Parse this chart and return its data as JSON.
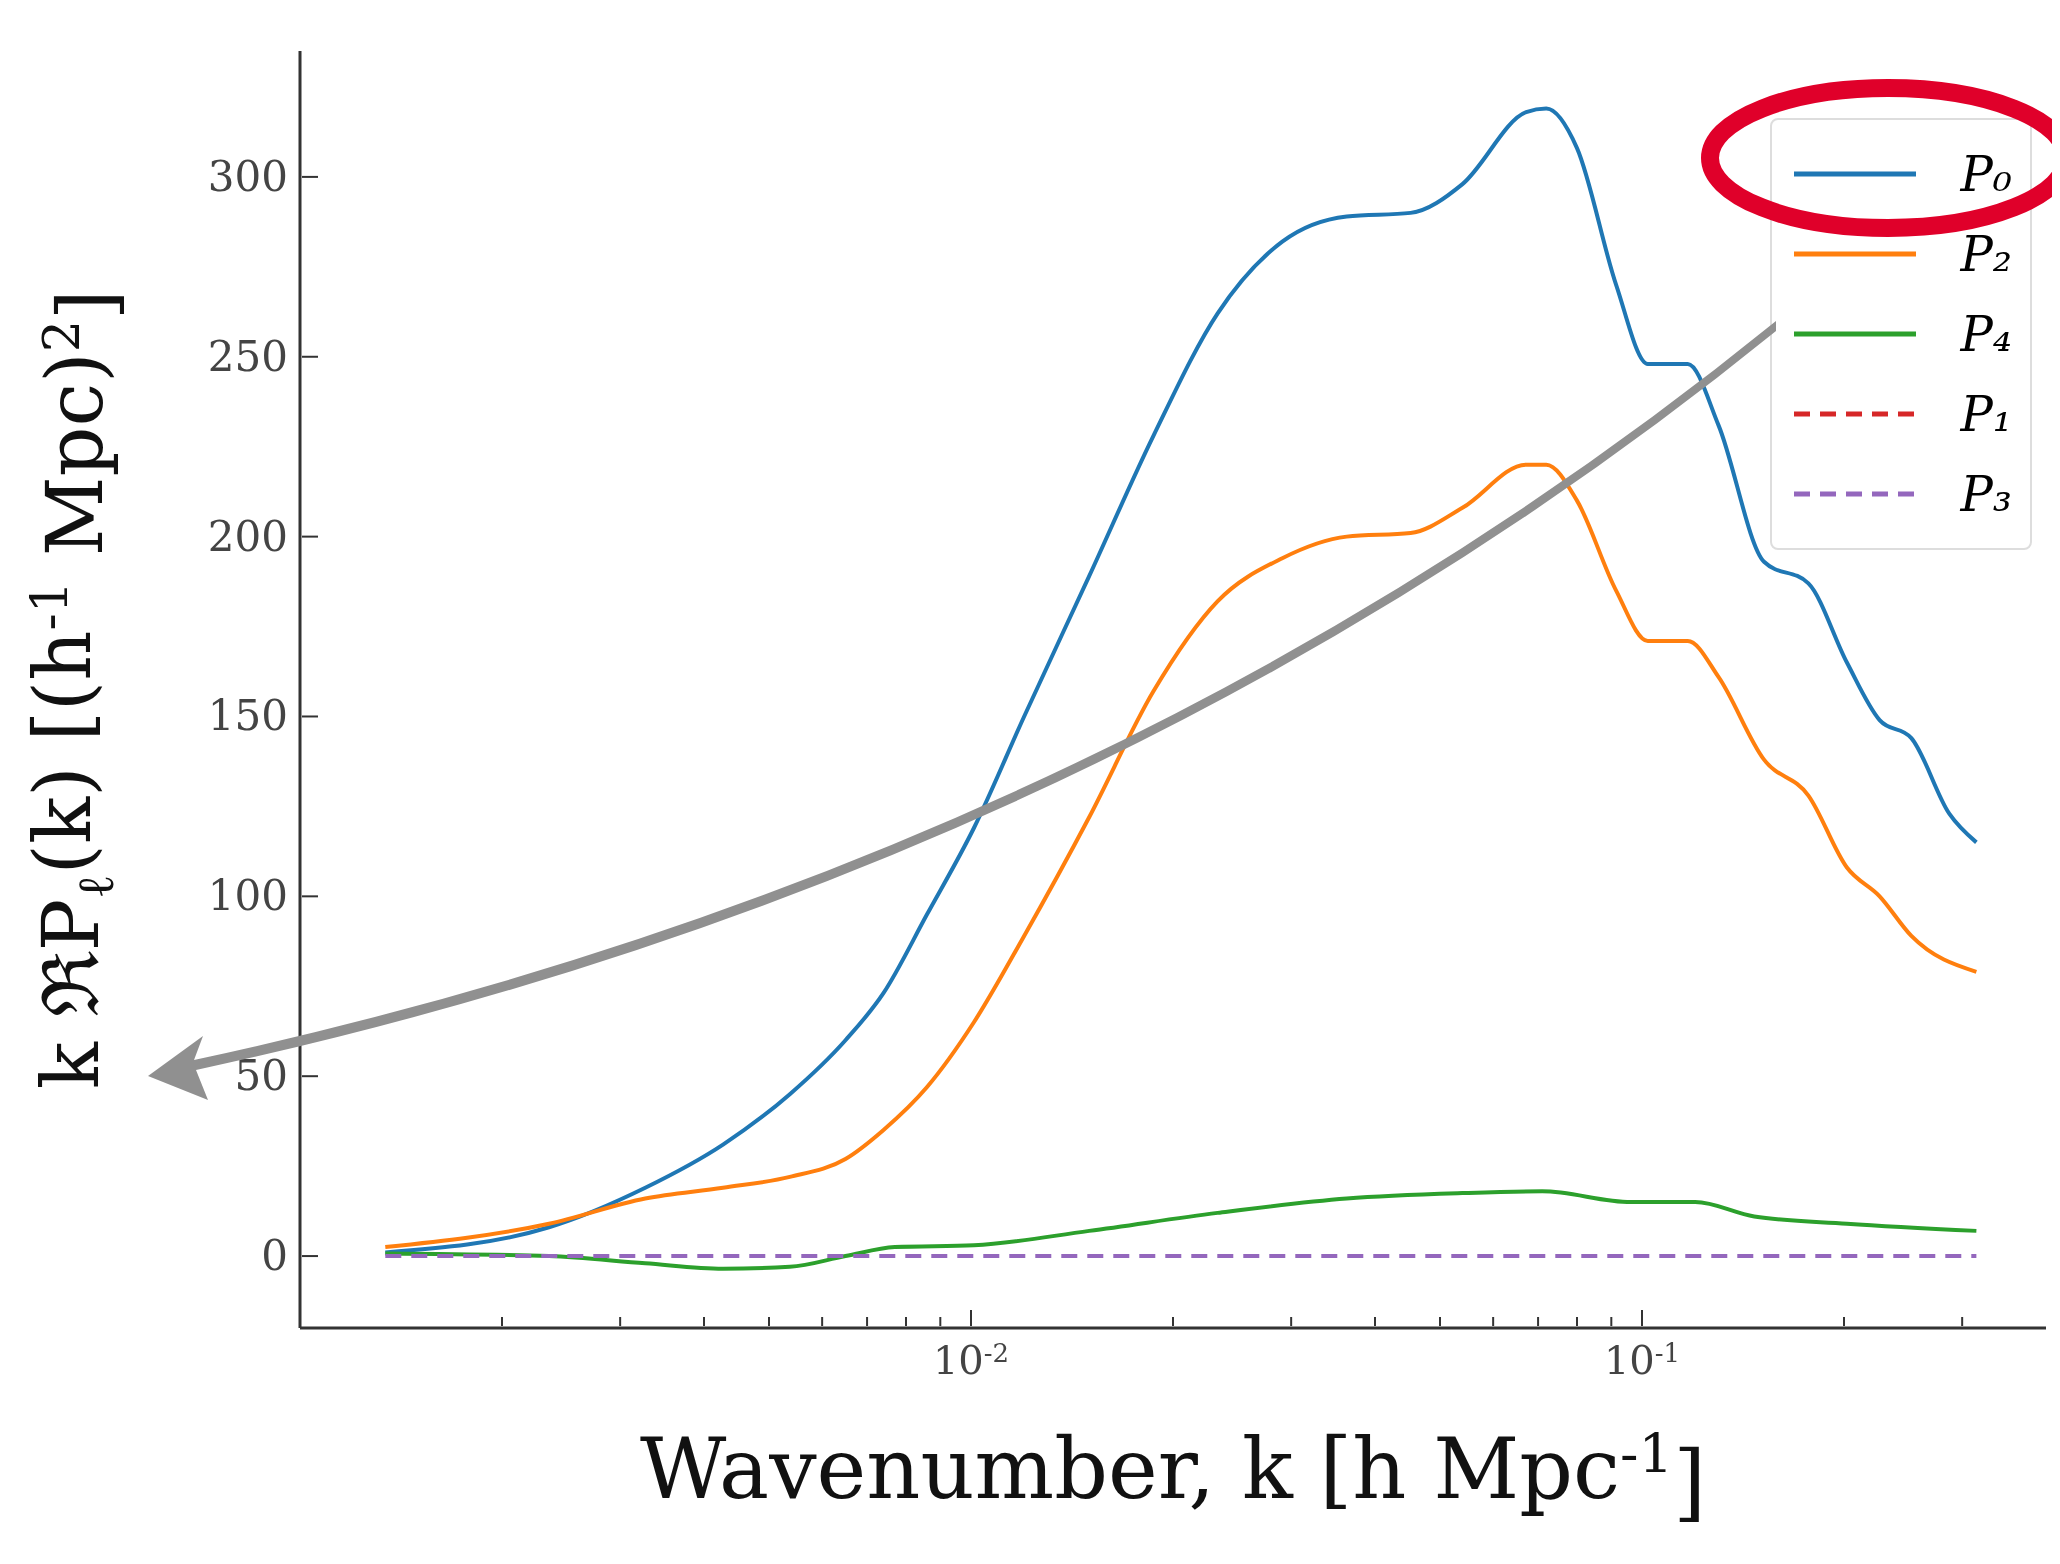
{
  "chart_data": {
    "type": "line",
    "xlabel": "Wavenumber, k [h Mpc$^{-1}$]",
    "ylabel": "k ℜP$_{ℓ}$(k) [(h$^{-1}$ Mpc)$^{2}$]",
    "log": "x",
    "xlim": [
      0.001,
      0.4
    ],
    "xticks": [
      {
        "value": 0.002,
        "label": null
      },
      {
        "value": 0.003,
        "label": null
      },
      {
        "value": 0.004,
        "label": null
      },
      {
        "value": 0.005,
        "label": null
      },
      {
        "value": 0.006,
        "label": null
      },
      {
        "value": 0.007,
        "label": null
      },
      {
        "value": 0.008,
        "label": null
      },
      {
        "value": 0.009,
        "label": null
      },
      {
        "value": 0.01,
        "label": "10$^{-2}$"
      },
      {
        "value": 0.02,
        "label": null
      },
      {
        "value": 0.03,
        "label": null
      },
      {
        "value": 0.04,
        "label": null
      },
      {
        "value": 0.05,
        "label": null
      },
      {
        "value": 0.06,
        "label": null
      },
      {
        "value": 0.07,
        "label": null
      },
      {
        "value": 0.08,
        "label": null
      },
      {
        "value": 0.09,
        "label": null
      },
      {
        "value": 0.1,
        "label": "10$^{-1}$"
      },
      {
        "value": 0.2,
        "label": null
      },
      {
        "value": 0.3,
        "label": null
      }
    ],
    "ylim": [
      -20,
      335
    ],
    "yticks": [
      0,
      50,
      100,
      150,
      200,
      250,
      300
    ],
    "legend": "top right",
    "series": [
      {
        "name": "P₀",
        "color": "#1f77b4",
        "line_style": "solid",
        "x": [
          0.00134,
          0.00235,
          0.00327,
          0.00427,
          0.00537,
          0.0065,
          0.0074,
          0.0086,
          0.0101,
          0.012,
          0.015,
          0.0187,
          0.0233,
          0.0291,
          0.0363,
          0.0452,
          0.054,
          0.0672,
          0.072,
          0.08,
          0.0915,
          0.102,
          0.117,
          0.13,
          0.152,
          0.177,
          0.202,
          0.226,
          0.252,
          0.287,
          0.315
        ],
        "values": [
          1,
          8,
          19,
          31,
          45,
          60,
          73,
          95,
          119,
          150,
          189,
          228,
          262,
          282,
          289,
          290,
          298,
          318,
          319,
          308,
          270,
          248,
          248,
          231,
          193,
          187,
          165,
          149,
          144,
          123,
          115
        ]
      },
      {
        "name": "P₂",
        "color": "#ff7f0e",
        "line_style": "solid",
        "x": [
          0.00134,
          0.00235,
          0.00327,
          0.00427,
          0.00537,
          0.0065,
          0.0074,
          0.0086,
          0.0101,
          0.012,
          0.015,
          0.0187,
          0.0233,
          0.0291,
          0.0363,
          0.0452,
          0.054,
          0.0672,
          0.072,
          0.08,
          0.0915,
          0.102,
          0.117,
          0.13,
          0.152,
          0.177,
          0.202,
          0.226,
          0.252,
          0.315
        ],
        "values": [
          2.5,
          9,
          16,
          19,
          22,
          27,
          35,
          47,
          65,
          89,
          122,
          157,
          182,
          194,
          200,
          201,
          208,
          220,
          220,
          210,
          185,
          171,
          171,
          161,
          138,
          128,
          108,
          100,
          89,
          79
        ]
      },
      {
        "name": "P₄",
        "color": "#2ca02c",
        "line_style": "solid",
        "x": [
          0.00134,
          0.00235,
          0.00327,
          0.00427,
          0.00537,
          0.0065,
          0.0077,
          0.0101,
          0.015,
          0.0233,
          0.0363,
          0.054,
          0.071,
          0.0963,
          0.12,
          0.147,
          0.202,
          0.315
        ],
        "values": [
          0.7,
          0,
          -2,
          -3.5,
          -3,
          0,
          2.5,
          3,
          7,
          12,
          16,
          17.5,
          18,
          15,
          15,
          11,
          9,
          7
        ]
      },
      {
        "name": "P₁",
        "color": "#d62728",
        "line_style": "dashed"
      },
      {
        "name": "P₃",
        "color": "#9467bd",
        "line_style": "dashed",
        "x": [
          0.00134,
          0.315
        ],
        "values": [
          0,
          0
        ]
      }
    ]
  }
}
